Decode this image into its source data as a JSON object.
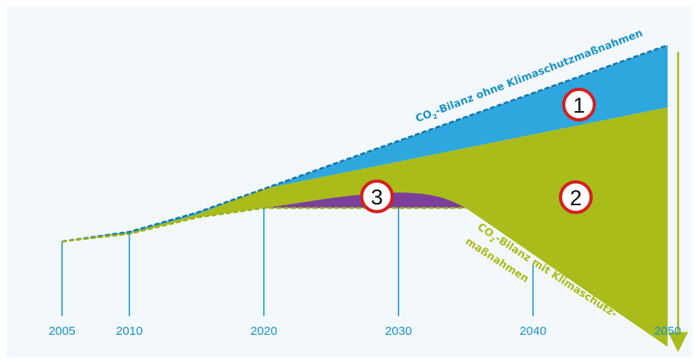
{
  "chart_data": {
    "type": "area",
    "x_ticks": [
      2005,
      2010,
      2020,
      2030,
      2040,
      2050
    ],
    "x_tick_labels": [
      "2005",
      "2010",
      "2020",
      "2030",
      "2040",
      "2050"
    ],
    "series": [
      {
        "name": "",
        "label_lines": [
          "CO",
          "2",
          "-Bilanz ohne Klimaschutzmaßnahmen"
        ],
        "points": [
          [
            2005,
            0
          ],
          [
            2010,
            10
          ],
          [
            2015,
            30
          ],
          [
            2020,
            55
          ],
          [
            2030,
            105
          ],
          [
            2040,
            155
          ],
          [
            2050,
            205
          ]
        ]
      },
      {
        "name": "",
        "label_lines": [
          "CO",
          "2",
          "-Bilanz mit Klimaschutz-",
          "maßnahmen"
        ],
        "points": [
          [
            2005,
            0
          ],
          [
            2010,
            8
          ],
          [
            2015,
            25
          ],
          [
            2020,
            35
          ],
          [
            2035,
            35
          ],
          [
            2040,
            -20
          ],
          [
            2050,
            -110
          ]
        ]
      }
    ],
    "areas": [
      {
        "id": "1",
        "color": "#2ea7df"
      },
      {
        "id": "2",
        "color": "#a9bc1a"
      },
      {
        "id": "3",
        "color": "#7b3f9a"
      }
    ],
    "markers": [
      "1",
      "2",
      "3"
    ],
    "colors": {
      "blue": "#2ea7df",
      "green": "#a9bc1a",
      "purple": "#7b3f9a",
      "tick": "#1a93c8",
      "marker_ring": "#d42020"
    },
    "grid": false,
    "legend": "none"
  }
}
